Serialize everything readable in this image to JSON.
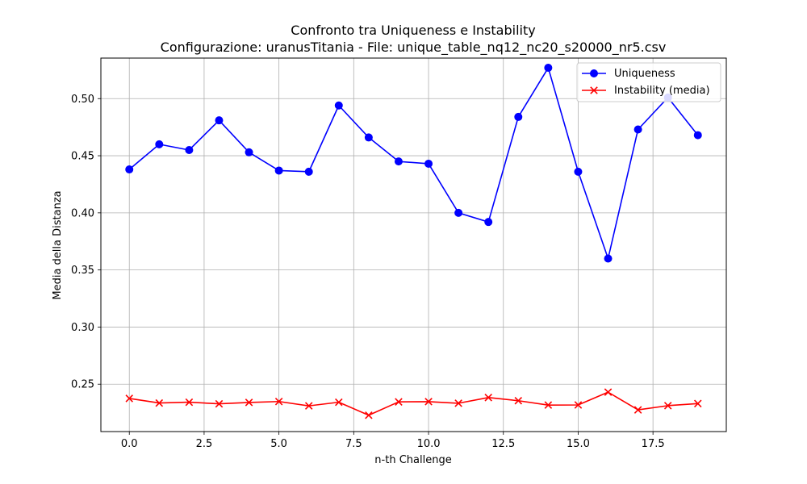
{
  "chart_data": {
    "type": "line",
    "title": "Confronto tra Uniqueness e Instability",
    "subtitle": "Configurazione: uranusTitania - File: unique_table_nq12_nc20_s20000_nr5.csv",
    "xlabel": "n-th Challenge",
    "ylabel": "Media della Distanza",
    "xlim": [
      -0.95,
      19.95
    ],
    "ylim": [
      0.2085,
      0.5355
    ],
    "xticks": [
      0,
      2.5,
      5,
      7.5,
      10,
      12.5,
      15,
      17.5
    ],
    "xtick_labels": [
      "0.0",
      "2.5",
      "5.0",
      "7.5",
      "10.0",
      "12.5",
      "15.0",
      "17.5"
    ],
    "yticks": [
      0.25,
      0.3,
      0.35,
      0.4,
      0.45,
      0.5
    ],
    "ytick_labels": [
      "0.25",
      "0.30",
      "0.35",
      "0.40",
      "0.45",
      "0.50"
    ],
    "grid": true,
    "legend_position": "top-right",
    "x": [
      0,
      1,
      2,
      3,
      4,
      5,
      6,
      7,
      8,
      9,
      10,
      11,
      12,
      13,
      14,
      15,
      16,
      17,
      18,
      19
    ],
    "series": [
      {
        "name": "Uniqueness",
        "color": "#0000ff",
        "marker": "circle",
        "values": [
          0.438,
          0.46,
          0.455,
          0.481,
          0.453,
          0.437,
          0.436,
          0.494,
          0.466,
          0.445,
          0.443,
          0.4,
          0.392,
          0.484,
          0.527,
          0.436,
          0.36,
          0.473,
          0.501,
          0.468
        ]
      },
      {
        "name": "Instability (media)",
        "color": "#ff0000",
        "marker": "x",
        "values": [
          0.2375,
          0.2335,
          0.2342,
          0.2328,
          0.234,
          0.2348,
          0.231,
          0.2342,
          0.2228,
          0.2345,
          0.2347,
          0.2333,
          0.2383,
          0.2355,
          0.2317,
          0.2318,
          0.243,
          0.2275,
          0.2312,
          0.233
        ]
      }
    ]
  }
}
